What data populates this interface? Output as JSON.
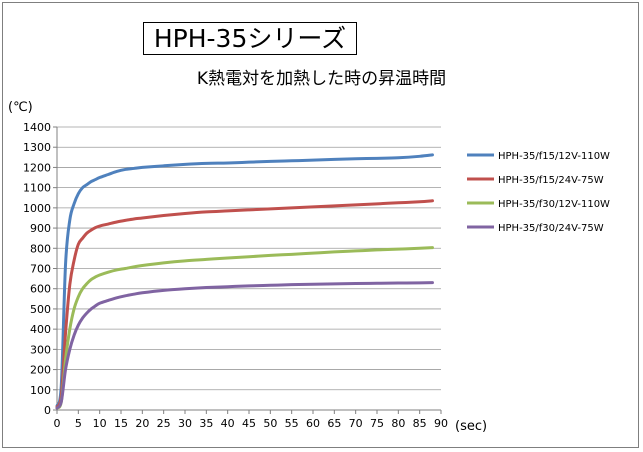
{
  "chart_data": {
    "type": "line",
    "title": "HPH-35シリーズ",
    "subtitle": "K熱電対を加熱した時の昇温時間",
    "ylabel": "(℃)",
    "xlabel": "(sec)",
    "xlim": [
      0,
      90
    ],
    "ylim": [
      0,
      1400
    ],
    "xticks": [
      0,
      5,
      10,
      15,
      20,
      25,
      30,
      35,
      40,
      45,
      50,
      55,
      60,
      65,
      70,
      75,
      80,
      85,
      90
    ],
    "yticks": [
      0,
      100,
      200,
      300,
      400,
      500,
      600,
      700,
      800,
      900,
      1000,
      1100,
      1200,
      1300,
      1400
    ],
    "grid": "horizontal",
    "legend": "right",
    "x": [
      0,
      1,
      2,
      3,
      4,
      5,
      6,
      7,
      8,
      9,
      10,
      12,
      14,
      16,
      18,
      20,
      25,
      30,
      35,
      40,
      45,
      50,
      55,
      60,
      65,
      70,
      75,
      80,
      85,
      88
    ],
    "series": [
      {
        "name": "HPH-35/f15/12V-110W",
        "color": "#4f81bd",
        "values": [
          20,
          120,
          720,
          940,
          1020,
          1070,
          1100,
          1115,
          1130,
          1140,
          1150,
          1165,
          1180,
          1190,
          1195,
          1200,
          1208,
          1215,
          1220,
          1222,
          1226,
          1230,
          1233,
          1236,
          1240,
          1243,
          1245,
          1248,
          1255,
          1262
        ]
      },
      {
        "name": "HPH-35/f15/24V-75W",
        "color": "#c0504d",
        "values": [
          15,
          70,
          380,
          620,
          740,
          820,
          850,
          875,
          890,
          902,
          910,
          920,
          930,
          938,
          945,
          950,
          962,
          972,
          980,
          985,
          990,
          995,
          1000,
          1005,
          1010,
          1015,
          1020,
          1025,
          1030,
          1035
        ]
      },
      {
        "name": "HPH-35/f30/12V-110W",
        "color": "#9bbb59",
        "values": [
          10,
          40,
          250,
          400,
          500,
          560,
          600,
          625,
          645,
          658,
          668,
          682,
          693,
          700,
          708,
          715,
          728,
          738,
          745,
          752,
          758,
          765,
          770,
          776,
          782,
          787,
          792,
          796,
          800,
          803
        ]
      },
      {
        "name": "HPH-35/f30/24V-75W",
        "color": "#8064a2",
        "values": [
          10,
          40,
          200,
          300,
          370,
          420,
          455,
          480,
          500,
          515,
          528,
          542,
          555,
          565,
          573,
          580,
          592,
          600,
          606,
          610,
          614,
          617,
          620,
          622,
          624,
          626,
          627,
          628,
          629,
          630
        ]
      }
    ]
  }
}
